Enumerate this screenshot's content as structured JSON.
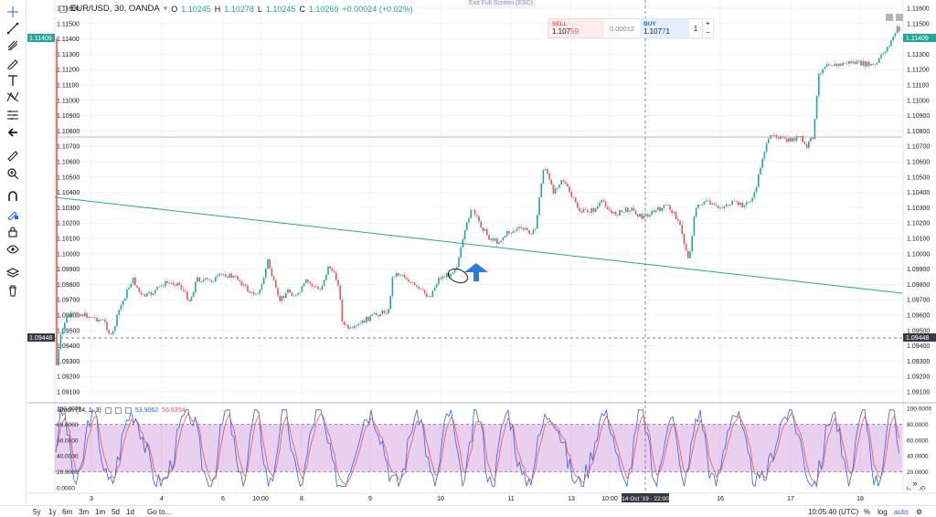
{
  "legend": {
    "symbol": "EUR/USD, 30, OANDA",
    "o_label": "O",
    "o": "1.10245",
    "h_label": "H",
    "h": "1.10278",
    "l_label": "L",
    "l": "1.10245",
    "c_label": "C",
    "c": "1.10269",
    "change": "+0.00024 (+0.02%)"
  },
  "exit_fullscreen": "Exit Full Screen (ESC)",
  "trade": {
    "sell_label": "SELL",
    "sell_price_main": "1.107",
    "sell_price_pips": "59",
    "spread": "0.00012",
    "buy_label": "BUY",
    "buy_price_main": "1.107",
    "buy_price_pips": "7",
    "buy_price_tail": "1",
    "qty": "1",
    "plus": "+",
    "minus": "−"
  },
  "price_axis": [
    "1.11600",
    "1.11500",
    "1.11400",
    "1.11300",
    "1.11200",
    "1.11100",
    "1.11000",
    "1.10900",
    "1.10800",
    "1.10700",
    "1.10600",
    "1.10500",
    "1.10400",
    "1.10300",
    "1.10200",
    "1.10100",
    "1.10000",
    "1.09900",
    "1.09800",
    "1.09700",
    "1.09600",
    "1.09500",
    "1.09400",
    "1.09300",
    "1.09200",
    "1.09100"
  ],
  "current_price_tag": "1.11409",
  "crosshair_price_tag": "1.09448",
  "crosshair_time_tag": "14 Oct '19 · 22:00",
  "stoch": {
    "name": "Stoch (14, 1, 3)",
    "k": "53.9062",
    "d": "56.6354",
    "axis": [
      "100.0000",
      "80.0000",
      "60.0000",
      "40.0000",
      "20.0000",
      "0.0000"
    ],
    "k_color": "#2962ff",
    "d_color": "#ef5350"
  },
  "time_axis": [
    "3",
    "4",
    "6",
    "10:00",
    "8",
    "9",
    "10",
    "11",
    "13",
    "10:00",
    "16",
    "17",
    "18"
  ],
  "bottom": {
    "ranges": [
      "5y",
      "1y",
      "6m",
      "3m",
      "1m",
      "5d",
      "1d"
    ],
    "goto": "Go to...",
    "clock": "10:05:40 (UTC)",
    "percent": "%",
    "log": "log",
    "auto": "auto"
  },
  "colors": {
    "up": "#26a69a",
    "down": "#ef5350",
    "trendline": "#26a69a",
    "hline": "#f4a6a6",
    "arrow": "#2f7bd4"
  },
  "tools": [
    "crosshair-icon",
    "trendline-icon",
    "pitchfork-icon",
    "brush-icon",
    "text-icon",
    "pattern-icon",
    "measure-tools-icon",
    "back-icon",
    "ruler-icon",
    "zoom-icon",
    "magnet-icon",
    "lock-drawing-icon",
    "lock-icon",
    "eye-icon",
    "layers-icon",
    "trash-icon"
  ]
}
